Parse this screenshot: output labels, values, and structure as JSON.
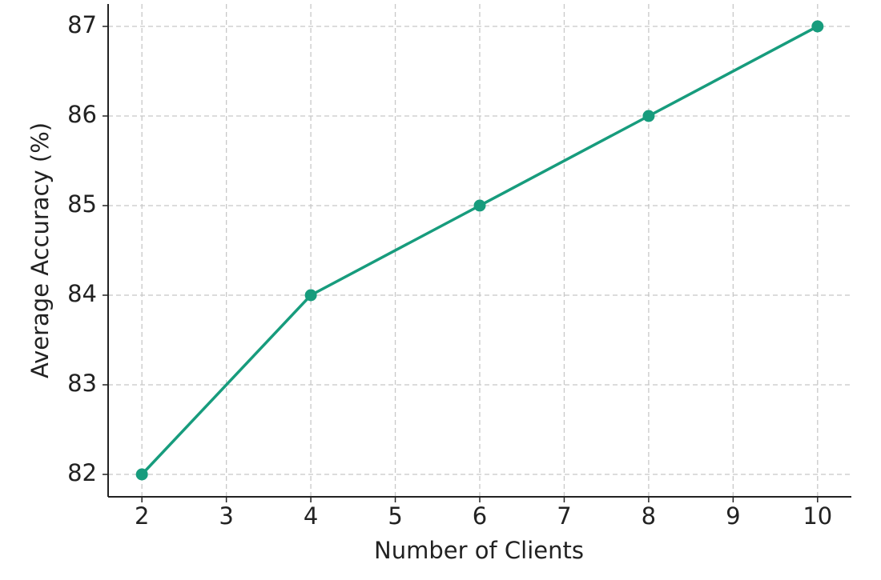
{
  "chart_data": {
    "type": "line",
    "x_label": "Number of Clients",
    "y_label": "Average Accuracy (%)",
    "x": [
      2,
      4,
      6,
      8,
      10
    ],
    "series": [
      {
        "color": "#179c7d",
        "values": [
          82,
          84,
          85,
          86,
          87
        ]
      }
    ],
    "xlim": [
      1.6,
      10.4
    ],
    "ylim": [
      81.75,
      87.25
    ],
    "xticks": [
      2,
      3,
      4,
      5,
      6,
      7,
      8,
      9,
      10
    ],
    "yticks": [
      82,
      83,
      84,
      85,
      86,
      87
    ],
    "grid": true
  }
}
